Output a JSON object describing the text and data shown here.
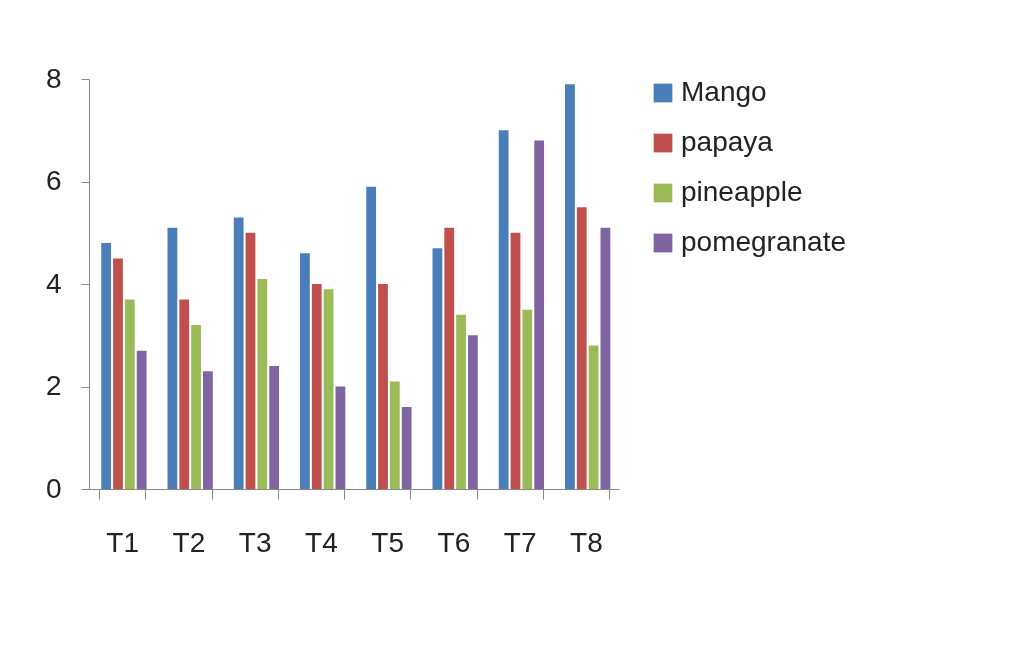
{
  "chart_data": {
    "type": "bar",
    "categories": [
      "T1",
      "T2",
      "T3",
      "T4",
      "T5",
      "T6",
      "T7",
      "T8"
    ],
    "series": [
      {
        "name": "Mango",
        "color": "#4a7ebb",
        "values": [
          4.8,
          5.1,
          5.3,
          4.6,
          5.9,
          4.7,
          7.0,
          7.9
        ]
      },
      {
        "name": "papaya",
        "color": "#c0504d",
        "values": [
          4.5,
          3.7,
          5.0,
          4.0,
          4.0,
          5.1,
          5.0,
          5.5
        ]
      },
      {
        "name": "pineapple",
        "color": "#9bbb59",
        "values": [
          3.7,
          3.2,
          4.1,
          3.9,
          2.1,
          3.4,
          3.5,
          2.8
        ]
      },
      {
        "name": "pomegranate",
        "color": "#8064a2",
        "values": [
          2.7,
          2.3,
          2.4,
          2.0,
          1.6,
          3.0,
          6.8,
          5.1
        ]
      }
    ],
    "ylim": [
      0,
      8
    ],
    "yticks": [
      0,
      2,
      4,
      6,
      8
    ],
    "grid": false,
    "legend": "right"
  }
}
